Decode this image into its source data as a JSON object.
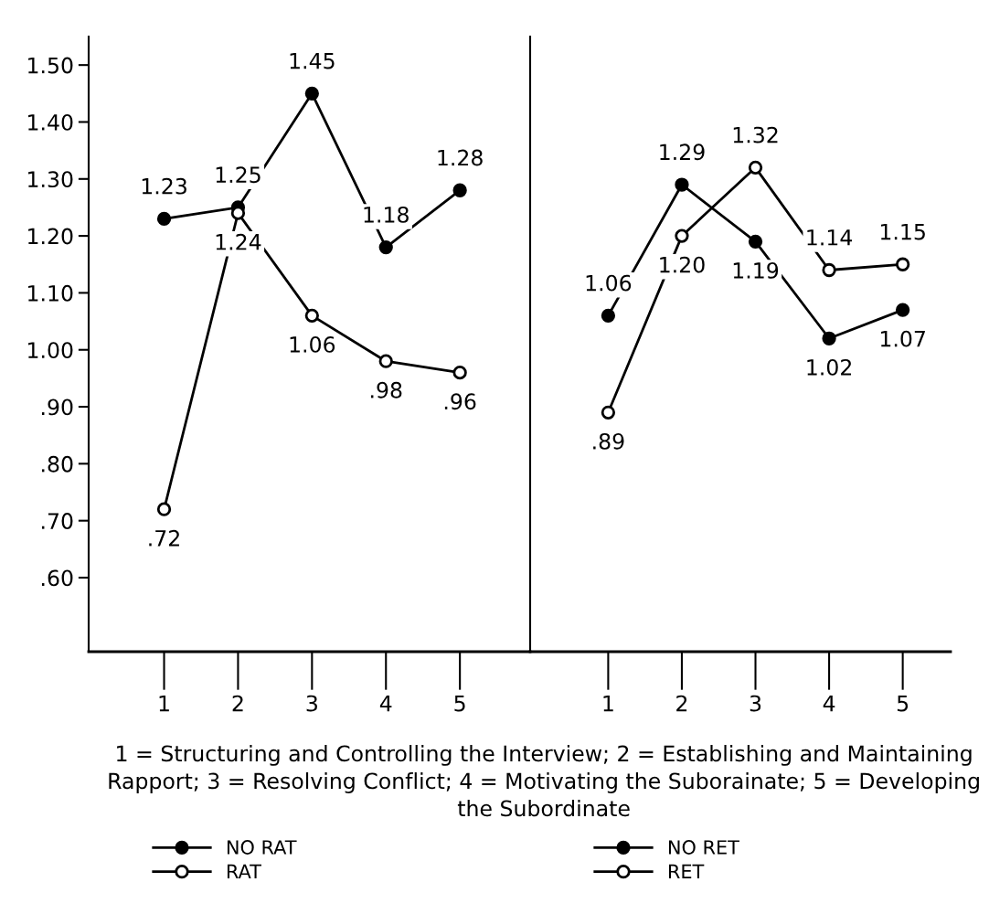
{
  "chart_data": [
    {
      "type": "line",
      "categories": [
        "1",
        "2",
        "3",
        "4",
        "5"
      ],
      "ylim": [
        0.47,
        1.55
      ],
      "yticks": [
        {
          "value": 0.6,
          "label": ".60"
        },
        {
          "value": 0.7,
          "label": ".70"
        },
        {
          "value": 0.8,
          "label": ".80"
        },
        {
          "value": 0.9,
          "label": ".90"
        },
        {
          "value": 1.0,
          "label": "1.00"
        },
        {
          "value": 1.1,
          "label": "1.10"
        },
        {
          "value": 1.2,
          "label": "1.20"
        },
        {
          "value": 1.3,
          "label": "1.30"
        },
        {
          "value": 1.4,
          "label": "1.40"
        },
        {
          "value": 1.5,
          "label": "1.50"
        }
      ],
      "marker": "circle",
      "grid": false,
      "legend": "bottom left",
      "series": [
        {
          "name": "NO RAT",
          "color": "#000000",
          "values": [
            1.23,
            1.25,
            1.45,
            1.18,
            1.28
          ],
          "value_labels": [
            "1.23",
            "1.25",
            "1.45",
            "1.18",
            "1.28"
          ]
        },
        {
          "name": "RAT",
          "color": "#000000",
          "values": [
            0.72,
            1.24,
            1.06,
            0.98,
            0.96
          ],
          "value_labels": [
            ".72",
            "1.24",
            "1.06",
            ".98",
            ".96"
          ]
        }
      ],
      "annotations": [
        "1 = Structuring and Controlling the Interview; 2 = Establishing and Maintaining Rapport; 3 = Resolving Conflict; 4 = Motivating the Suborainate; 5 = Developing the Subordinate"
      ]
    },
    {
      "type": "line",
      "categories": [
        "1",
        "2",
        "3",
        "4",
        "5"
      ],
      "ylim": [
        0.47,
        1.55
      ],
      "tick_labels": "x",
      "marker": "circle",
      "grid": false,
      "legend": "bottom left",
      "series": [
        {
          "name": "NO RET",
          "color": "#000000",
          "values": [
            1.06,
            1.29,
            1.19,
            1.02,
            1.07
          ],
          "value_labels": [
            "1.06",
            "1.29",
            "1.19",
            "1.02",
            "1.07"
          ]
        },
        {
          "name": "RET",
          "color": "#000000",
          "values": [
            0.89,
            1.2,
            1.32,
            1.14,
            1.15
          ],
          "value_labels": [
            ".89",
            "1.20",
            "1.32",
            "1.14",
            "1.15"
          ]
        }
      ]
    }
  ]
}
